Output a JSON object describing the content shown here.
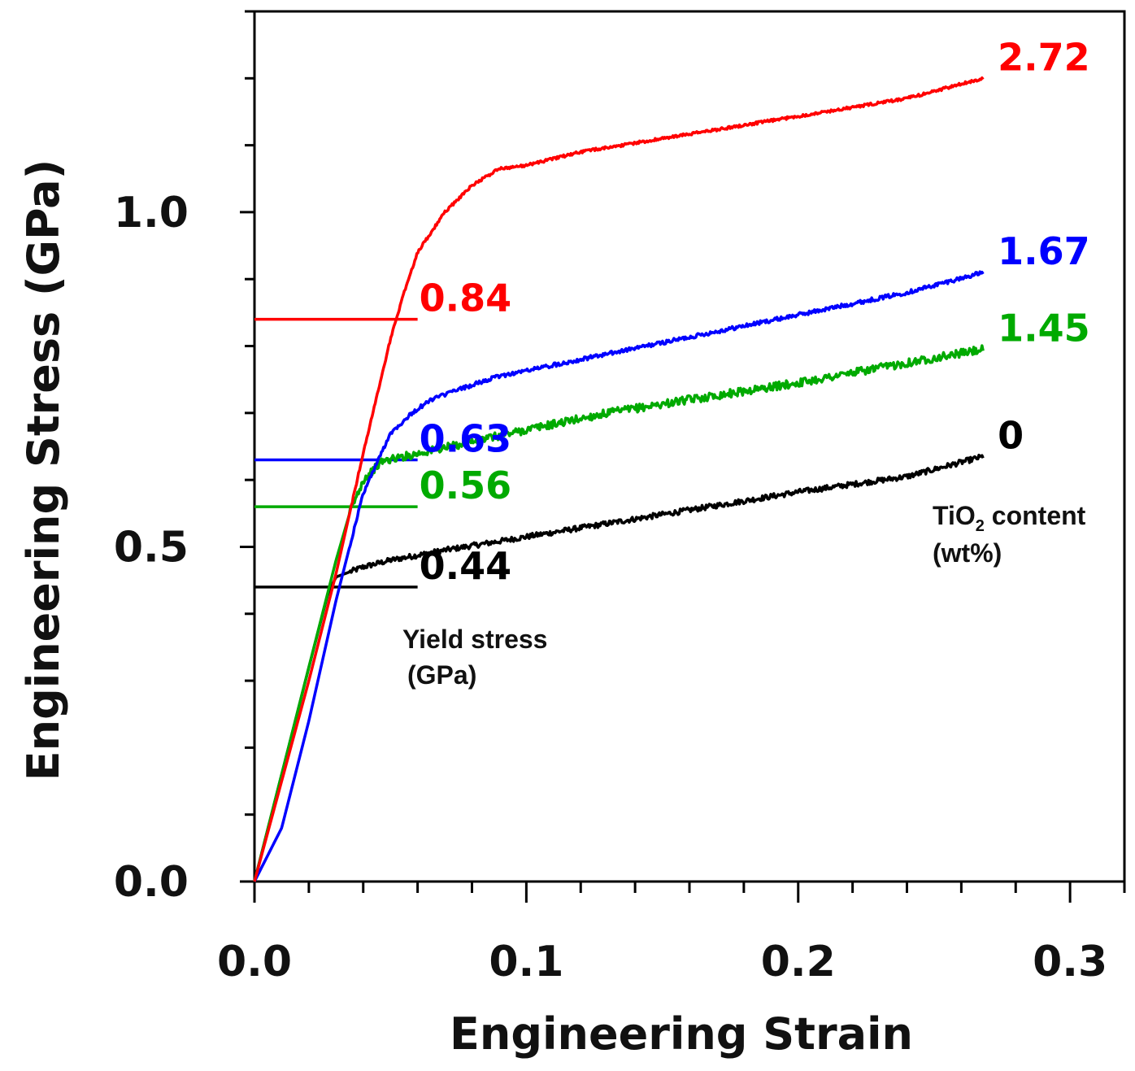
{
  "chart_data": {
    "type": "line",
    "xlabel": "Engineering Strain",
    "ylabel": "Engineering Stress (GPa)",
    "xlim": [
      0.0,
      0.32
    ],
    "ylim": [
      0.0,
      1.3
    ],
    "x_ticks": [
      0.0,
      0.1,
      0.2,
      0.3
    ],
    "x_tick_labels": [
      "0.0",
      "0.1",
      "0.2",
      "0.3"
    ],
    "y_ticks": [
      0.0,
      0.5,
      1.0
    ],
    "y_tick_labels": [
      "0.0",
      "0.5",
      "1.0"
    ],
    "grid": false,
    "legend_title": "TiO2 content (wt%)",
    "legend_title_parts": {
      "prefix": "TiO",
      "subscript": "2",
      "suffix": " content",
      "line2": "(wt%)"
    },
    "yield_annotation": {
      "line1": "Yield stress",
      "line2": "(GPa)"
    },
    "series": [
      {
        "name": "0",
        "label": "0",
        "color": "#000000",
        "noise": 0.004,
        "yield_stress": 0.44,
        "yield_label": "0.44",
        "x": [
          0.0,
          0.01,
          0.02,
          0.027,
          0.03,
          0.04,
          0.05,
          0.07,
          0.1,
          0.13,
          0.16,
          0.2,
          0.24,
          0.268
        ],
        "y": [
          0.0,
          0.16,
          0.32,
          0.43,
          0.455,
          0.47,
          0.48,
          0.495,
          0.515,
          0.535,
          0.555,
          0.582,
          0.605,
          0.635
        ]
      },
      {
        "name": "1.45",
        "label": "1.45",
        "color": "#00aa00",
        "noise": 0.006,
        "yield_stress": 0.56,
        "yield_label": "0.56",
        "x": [
          0.0,
          0.01,
          0.02,
          0.03,
          0.035,
          0.04,
          0.047,
          0.055,
          0.07,
          0.1,
          0.13,
          0.16,
          0.2,
          0.24,
          0.268
        ],
        "y": [
          0.0,
          0.16,
          0.32,
          0.48,
          0.55,
          0.6,
          0.628,
          0.635,
          0.648,
          0.675,
          0.7,
          0.72,
          0.745,
          0.775,
          0.795
        ]
      },
      {
        "name": "1.67",
        "label": "1.67",
        "color": "#0000ff",
        "noise": 0.003,
        "yield_stress": 0.63,
        "yield_label": "0.63",
        "x": [
          0.0,
          0.01,
          0.02,
          0.03,
          0.04,
          0.05,
          0.058,
          0.065,
          0.075,
          0.09,
          0.12,
          0.15,
          0.18,
          0.21,
          0.24,
          0.268
        ],
        "y": [
          0.0,
          0.08,
          0.24,
          0.42,
          0.58,
          0.67,
          0.7,
          0.72,
          0.735,
          0.755,
          0.78,
          0.805,
          0.83,
          0.855,
          0.88,
          0.91
        ]
      },
      {
        "name": "2.72",
        "label": "2.72",
        "color": "#ff0000",
        "noise": 0.002,
        "yield_stress": 0.84,
        "yield_label": "0.84",
        "x": [
          0.0,
          0.01,
          0.02,
          0.03,
          0.04,
          0.05,
          0.055,
          0.06,
          0.07,
          0.08,
          0.09,
          0.1,
          0.12,
          0.15,
          0.18,
          0.21,
          0.24,
          0.268
        ],
        "y": [
          0.0,
          0.15,
          0.3,
          0.46,
          0.64,
          0.81,
          0.88,
          0.94,
          1.0,
          1.04,
          1.065,
          1.07,
          1.09,
          1.11,
          1.13,
          1.15,
          1.17,
          1.2
        ]
      }
    ]
  }
}
